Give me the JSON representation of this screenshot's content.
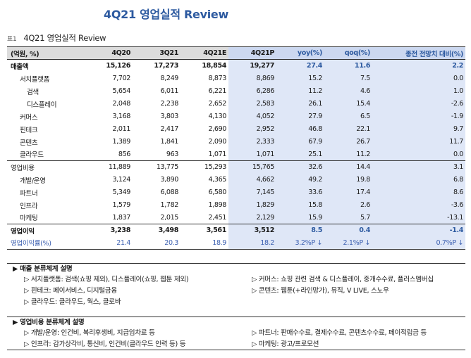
{
  "page_title": "4Q21 영업실적 Review",
  "caption": {
    "num": "표1",
    "text": "4Q21 영업실적 Review"
  },
  "table": {
    "headers": [
      "(억원, %)",
      "4Q20",
      "3Q21",
      "4Q21E",
      "4Q21P",
      "yoy(%)",
      "qoq(%)",
      "종전 전망치 대비(%)"
    ],
    "rows": [
      [
        "매출액",
        "15,126",
        "17,273",
        "18,854",
        "19,277",
        "27.4",
        "11.6",
        "2.2"
      ],
      [
        "서치플랫폼",
        "7,702",
        "8,249",
        "8,873",
        "8,869",
        "15.2",
        "7.5",
        "0.0"
      ],
      [
        "검색",
        "5,654",
        "6,011",
        "6,221",
        "6,286",
        "11.2",
        "4.6",
        "1.0"
      ],
      [
        "디스플레이",
        "2,048",
        "2,238",
        "2,652",
        "2,583",
        "26.1",
        "15.4",
        "-2.6"
      ],
      [
        "커머스",
        "3,168",
        "3,803",
        "4,130",
        "4,052",
        "27.9",
        "6.5",
        "-1.9"
      ],
      [
        "핀테크",
        "2,011",
        "2,417",
        "2,690",
        "2,952",
        "46.8",
        "22.1",
        "9.7"
      ],
      [
        "콘텐츠",
        "1,389",
        "1,841",
        "2,090",
        "2,333",
        "67.9",
        "26.7",
        "11.7"
      ],
      [
        "클라우드",
        "856",
        "963",
        "1,071",
        "1,071",
        "25.1",
        "11.2",
        "0.0"
      ],
      [
        "영업비용",
        "11,889",
        "13,775",
        "15,293",
        "15,765",
        "32.6",
        "14.4",
        "3.1"
      ],
      [
        "개발/운영",
        "3,124",
        "3,890",
        "4,365",
        "4,662",
        "49.2",
        "19.8",
        "6.8"
      ],
      [
        "파트너",
        "5,349",
        "6,088",
        "6,580",
        "7,145",
        "33.6",
        "17.4",
        "8.6"
      ],
      [
        "인프라",
        "1,579",
        "1,782",
        "1,898",
        "1,829",
        "15.8",
        "2.6",
        "-3.6"
      ],
      [
        "마케팅",
        "1,837",
        "2,015",
        "2,451",
        "2,129",
        "15.9",
        "5.7",
        "-13.1"
      ],
      [
        "영업이익",
        "3,238",
        "3,498",
        "3,561",
        "3,512",
        "8.5",
        "0.4",
        "-1.4"
      ],
      [
        "영업이익률(%)",
        "21.4",
        "20.3",
        "18.9",
        "18.2",
        "3.2%P ↓",
        "2.1%P ↓",
        "0.7%P ↓"
      ]
    ]
  },
  "notes": {
    "sales_head": "▶ 매출 분류체계 설명",
    "sales_items": [
      "▷ 서치플랫폼: 검색(쇼핑 제외), 디스플레이(쇼핑, 웹툰 제외)",
      "▷ 커머스: 쇼핑 관련 검색 & 디스플레이, 중개수수료, 플러스멤버십",
      "▷ 핀테크: 페이서비스, 디지털금융",
      "▷ 콘텐츠: 웹툰(+라인망가), 뮤직, V LIVE, 스노우",
      "▷ 클라우드: 클라우드, 웍스, 클로바"
    ],
    "cost_head": "▶ 영업비용 분류체계 설명",
    "cost_items": [
      "▷ 개발/운영: 인건비, 복리후생비, 지급임차료 등",
      "▷ 파트너: 판매수수료, 결제수수료, 콘텐츠수수료, 페이적립금 등",
      "▷ 인프라: 감가상각비, 통신비, 인건비(클라우드 인력 등) 등",
      "▷ 마케팅: 광고/프로모션"
    ]
  }
}
